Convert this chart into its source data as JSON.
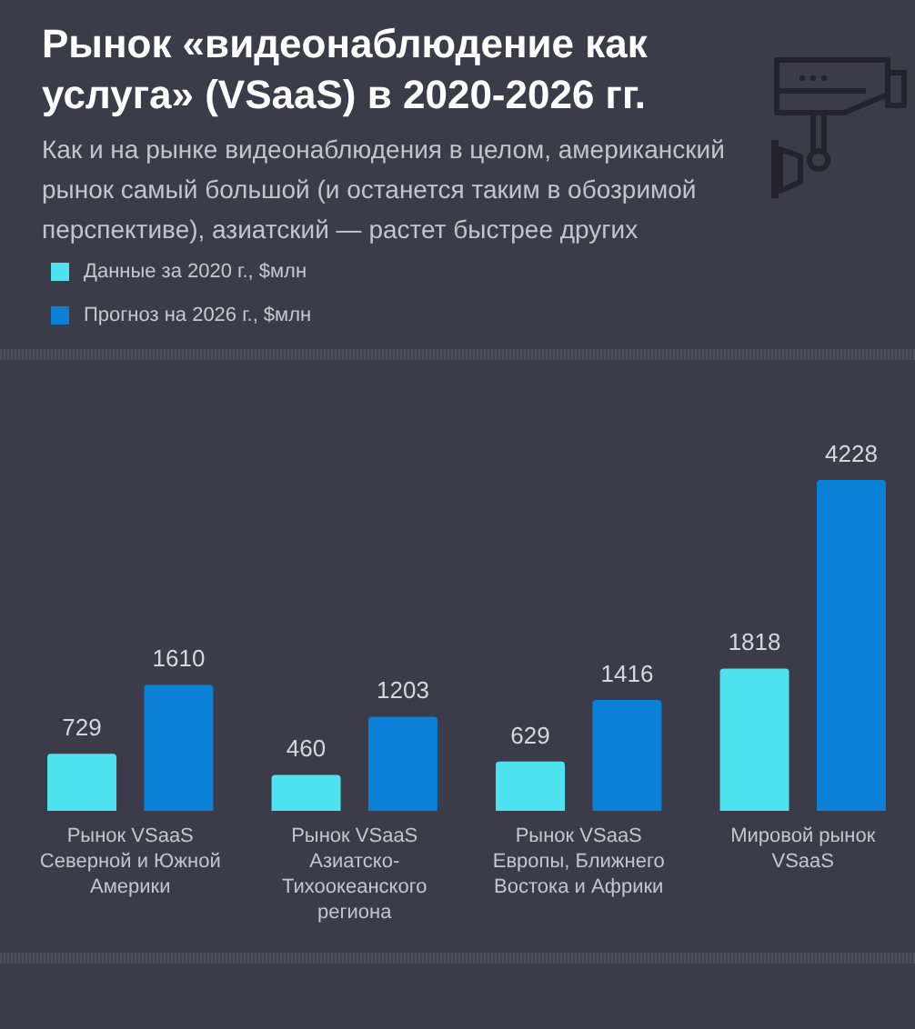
{
  "chart_data": {
    "type": "bar",
    "title": "Рынок «видеонаблюдение как услуга» (VSaaS) в 2020-2026 гг.",
    "subtitle": "Как и на рынке видеонаблюдения в целом, американский рынок самый большой (и останется таким в обозримой перспективе), азиатский — растет быстрее других",
    "categories": [
      "Рынок VSaaS Северной и Южной Америки",
      "Рынок VSaaS Азиатско-Тихоокеанского региона",
      "Рынок VSaaS Европы, Ближнего Востока и Африки",
      "Мировой рынок VSaaS"
    ],
    "series": [
      {
        "name": "Данные за 2020 г., $млн",
        "color": "#4fe3ef",
        "values": [
          729,
          460,
          629,
          1818
        ]
      },
      {
        "name": "Прогноз на 2026 г., $млн",
        "color": "#0a80d6",
        "values": [
          1610,
          1203,
          1416,
          4228
        ]
      }
    ],
    "data_labels": true,
    "legend": "top left",
    "tick_labels": "x"
  }
}
